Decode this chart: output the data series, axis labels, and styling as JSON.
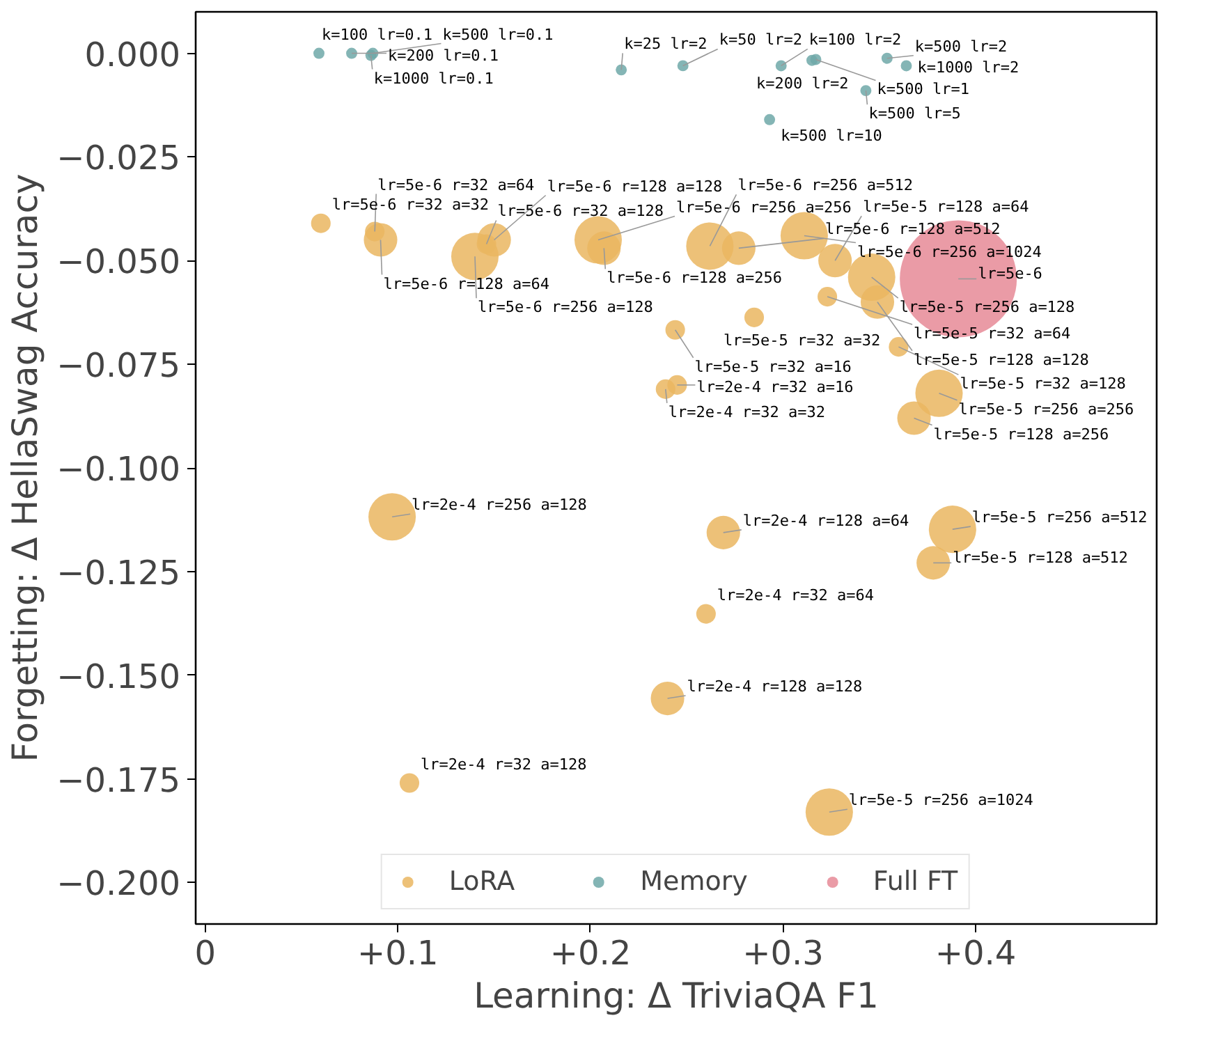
{
  "chart_data": {
    "type": "bubble",
    "xlabel": "Learning: Δ TriviaQA F1",
    "ylabel": "Forgetting: Δ HellaSwag Accuracy",
    "xlim": [
      -0.005,
      0.494
    ],
    "ylim": [
      -0.21,
      0.01
    ],
    "xticks": [
      {
        "value": 0,
        "label": "0"
      },
      {
        "value": 0.1,
        "label": "+0.1"
      },
      {
        "value": 0.2,
        "label": "+0.2"
      },
      {
        "value": 0.3,
        "label": "+0.3"
      },
      {
        "value": 0.4,
        "label": "+0.4"
      }
    ],
    "yticks": [
      {
        "value": 0,
        "label": "0.000"
      },
      {
        "value": -0.025,
        "label": "−0.025"
      },
      {
        "value": -0.05,
        "label": "−0.050"
      },
      {
        "value": -0.075,
        "label": "−0.075"
      },
      {
        "value": -0.1,
        "label": "−0.100"
      },
      {
        "value": -0.125,
        "label": "−0.125"
      },
      {
        "value": -0.15,
        "label": "−0.150"
      },
      {
        "value": -0.175,
        "label": "−0.175"
      },
      {
        "value": -0.2,
        "label": "−0.200"
      }
    ],
    "grid": false,
    "legend": "bottom",
    "series": [
      {
        "name": "LoRA",
        "color": "#eab660",
        "x": [
          0.06,
          0.088,
          0.091,
          0.146,
          0.15,
          0.14,
          0.207,
          0.204,
          0.262,
          0.277,
          0.311,
          0.327,
          0.346,
          0.323,
          0.349,
          0.285,
          0.244,
          0.36,
          0.381,
          0.368,
          0.245,
          0.239,
          0.097,
          0.269,
          0.388,
          0.378,
          0.26,
          0.24,
          0.106,
          0.324
        ],
        "values": [
          -0.041,
          -0.043,
          -0.045,
          -0.046,
          -0.045,
          -0.049,
          -0.047,
          -0.045,
          -0.0465,
          -0.047,
          -0.044,
          -0.05,
          -0.054,
          -0.0587,
          -0.06,
          -0.0637,
          -0.0667,
          -0.0708,
          -0.082,
          -0.088,
          -0.08,
          -0.081,
          -0.1118,
          -0.1156,
          -0.1148,
          -0.1229,
          -0.1352,
          -0.1556,
          -0.176,
          -0.183
        ],
        "sizes": [
          0.028,
          0.028,
          0.082,
          0.028,
          0.082,
          0.164,
          0.082,
          0.164,
          0.164,
          0.082,
          0.164,
          0.082,
          0.164,
          0.028,
          0.082,
          0.028,
          0.028,
          0.028,
          0.164,
          0.082,
          0.028,
          0.028,
          0.164,
          0.082,
          0.164,
          0.082,
          0.028,
          0.082,
          0.028,
          0.164
        ]
      },
      {
        "name": "Memory",
        "color": "#6fa8a8",
        "x": [
          0.059,
          0.076,
          0.086,
          0.087,
          0.216,
          0.248,
          0.299,
          0.315,
          0.317,
          0.354,
          0.364,
          0.343,
          0.293
        ],
        "values": [
          0.0,
          0.0,
          -0.0005,
          0.0,
          -0.004,
          -0.003,
          -0.003,
          -0.0017,
          -0.0015,
          -0.0012,
          -0.003,
          -0.009,
          -0.016
        ],
        "sizes": [
          0.009,
          0.009,
          0.009,
          0.009,
          0.009,
          0.009,
          0.009,
          0.009,
          0.009,
          0.009,
          0.009,
          0.009,
          0.009
        ]
      },
      {
        "name": "Full FT",
        "color": "#e68a96",
        "x": [
          0.391
        ],
        "values": [
          -0.0544
        ],
        "sizes": [
          1
        ]
      }
    ],
    "annotations": [
      {
        "text": "lr=5e-6 r=32 a=32",
        "x": 0.06,
        "y": -0.041
      },
      {
        "text": "lr=5e-6 r=32 a=64",
        "x": 0.088,
        "y": -0.043
      },
      {
        "text": "lr=5e-6 r=128 a=64",
        "x": 0.091,
        "y": -0.045
      },
      {
        "text": "lr=5e-6 r=32 a=128",
        "x": 0.146,
        "y": -0.046
      },
      {
        "text": "lr=5e-6 r=128 a=128",
        "x": 0.15,
        "y": -0.045
      },
      {
        "text": "lr=5e-6 r=256 a=128",
        "x": 0.14,
        "y": -0.049
      },
      {
        "text": "lr=5e-6 r=128 a=256",
        "x": 0.207,
        "y": -0.047
      },
      {
        "text": "lr=5e-6 r=256 a=256",
        "x": 0.204,
        "y": -0.045
      },
      {
        "text": "lr=5e-6 r=256 a=512",
        "x": 0.262,
        "y": -0.0465
      },
      {
        "text": "lr=5e-6 r=128 a=512",
        "x": 0.277,
        "y": -0.047
      },
      {
        "text": "lr=5e-6 r=256 a=1024",
        "x": 0.311,
        "y": -0.044
      },
      {
        "text": "lr=5e-5 r=128 a=64",
        "x": 0.327,
        "y": -0.05
      },
      {
        "text": "lr=5e-5 r=256 a=128",
        "x": 0.346,
        "y": -0.054
      },
      {
        "text": "lr=5e-5 r=32 a=64",
        "x": 0.323,
        "y": -0.0587
      },
      {
        "text": "lr=5e-5 r=128 a=128",
        "x": 0.349,
        "y": -0.06
      },
      {
        "text": "lr=5e-5 r=32 a=32",
        "x": 0.285,
        "y": -0.0637
      },
      {
        "text": "lr=5e-5 r=32 a=16",
        "x": 0.244,
        "y": -0.0667
      },
      {
        "text": "lr=5e-5 r=32 a=128",
        "x": 0.36,
        "y": -0.0708
      },
      {
        "text": "lr=5e-5 r=256 a=256",
        "x": 0.381,
        "y": -0.082
      },
      {
        "text": "lr=5e-5 r=128 a=256",
        "x": 0.368,
        "y": -0.088
      },
      {
        "text": "lr=2e-4 r=32 a=16",
        "x": 0.245,
        "y": -0.08
      },
      {
        "text": "lr=2e-4 r=32 a=32",
        "x": 0.239,
        "y": -0.081
      },
      {
        "text": "lr=2e-4 r=256 a=128",
        "x": 0.097,
        "y": -0.1118
      },
      {
        "text": "lr=2e-4 r=128 a=64",
        "x": 0.269,
        "y": -0.1156
      },
      {
        "text": "lr=5e-5 r=256 a=512",
        "x": 0.388,
        "y": -0.1148
      },
      {
        "text": "lr=5e-5 r=128 a=512",
        "x": 0.378,
        "y": -0.1229
      },
      {
        "text": "lr=2e-4 r=32 a=64",
        "x": 0.26,
        "y": -0.1352
      },
      {
        "text": "lr=2e-4 r=128 a=128",
        "x": 0.24,
        "y": -0.1556
      },
      {
        "text": "lr=2e-4 r=32 a=128",
        "x": 0.106,
        "y": -0.176
      },
      {
        "text": "lr=5e-5 r=256 a=1024",
        "x": 0.324,
        "y": -0.183
      },
      {
        "text": "k=100 lr=0.1",
        "x": 0.059,
        "y": 0.0
      },
      {
        "text": "k=200 lr=0.1",
        "x": 0.076,
        "y": 0.0
      },
      {
        "text": "k=1000 lr=0.1",
        "x": 0.086,
        "y": -0.0005
      },
      {
        "text": "k=500 lr=0.1",
        "x": 0.087,
        "y": 0.0
      },
      {
        "text": "k=25 lr=2",
        "x": 0.216,
        "y": -0.004
      },
      {
        "text": "k=50 lr=2",
        "x": 0.248,
        "y": -0.003
      },
      {
        "text": "k=100 lr=2",
        "x": 0.299,
        "y": -0.003
      },
      {
        "text": "k=200 lr=2",
        "x": 0.315,
        "y": -0.0017
      },
      {
        "text": "k=500 lr=1",
        "x": 0.317,
        "y": -0.0015
      },
      {
        "text": "k=500 lr=2",
        "x": 0.354,
        "y": -0.0012
      },
      {
        "text": "k=1000 lr=2",
        "x": 0.364,
        "y": -0.003
      },
      {
        "text": "k=500 lr=5",
        "x": 0.343,
        "y": -0.009
      },
      {
        "text": "k=500 lr=10",
        "x": 0.293,
        "y": -0.016
      },
      {
        "text": "lr=5e-6",
        "x": 0.391,
        "y": -0.0544
      }
    ]
  }
}
